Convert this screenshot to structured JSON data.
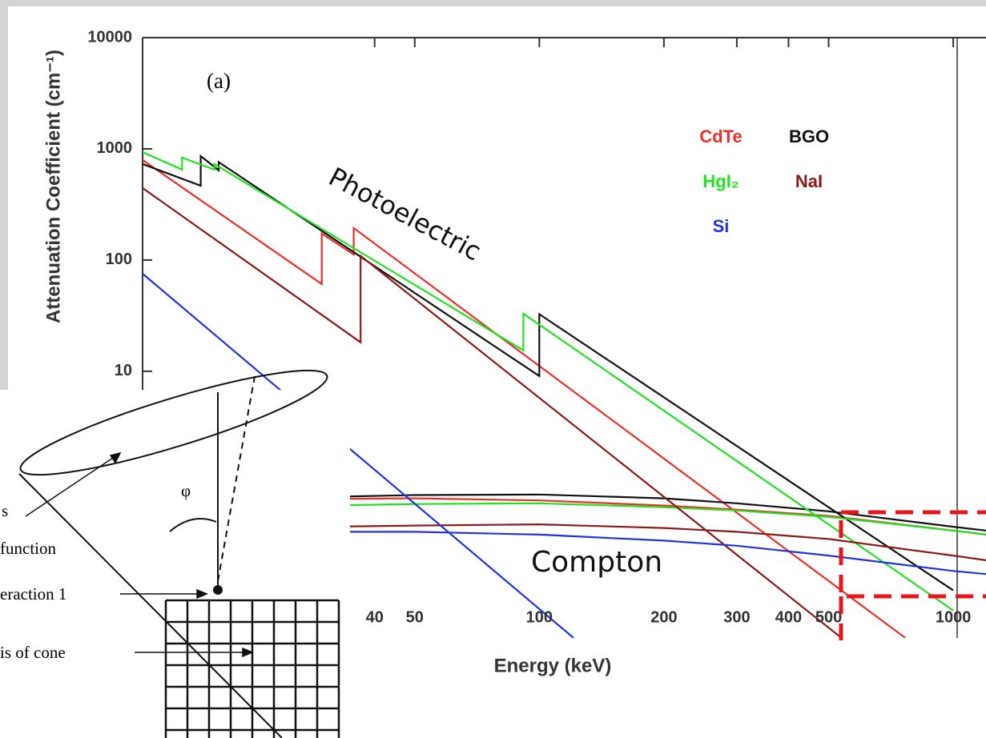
{
  "chart_data": {
    "type": "line",
    "xlabel": "Energy (keV)",
    "ylabel": "Attenuation Coefficient (cm⁻¹)",
    "x_scale": "log",
    "y_scale": "log",
    "xlim": [
      11,
      1200
    ],
    "ylim": [
      0.04,
      10000
    ],
    "xticks": [
      40,
      50,
      100,
      200,
      300,
      400,
      500,
      1000
    ],
    "yticks": [
      10,
      100,
      1000,
      10000
    ],
    "legend": "upper right",
    "annotations": [
      "(a)",
      "Photoelectric",
      "Compton"
    ],
    "compton_x": [
      11,
      20,
      30,
      50,
      100,
      200,
      300,
      500,
      1000,
      1200
    ],
    "series": [
      {
        "name": "CdTe",
        "color": "#e8302a",
        "x": [
          11,
          29.8,
          29.8,
          35.6,
          35.6,
          766
        ],
        "values": [
          793,
          60.8,
          173,
          112,
          194,
          0.04
        ],
        "compton_values": [
          0.6,
          0.68,
          0.71,
          0.72,
          0.69,
          0.62,
          0.57,
          0.5,
          0.37,
          0.34
        ]
      },
      {
        "name": "BGO",
        "color": "#111111",
        "x": [
          11,
          15.2,
          15.2,
          16.8,
          16.8,
          100,
          100,
          1000
        ],
        "values": [
          730,
          466,
          861,
          640,
          760,
          9.05,
          32.6,
          0.107
        ],
        "compton_values": [
          0.6,
          0.7,
          0.74,
          0.77,
          0.78,
          0.72,
          0.65,
          0.55,
          0.4,
          0.37
        ]
      },
      {
        "name": "HgI₂",
        "color": "#22e022",
        "x": [
          11,
          13.7,
          13.7,
          16.4,
          16.4,
          91.5,
          91.5,
          1000
        ],
        "values": [
          935,
          650,
          834,
          650,
          730,
          15.4,
          33,
          0.0706
        ],
        "compton_values": [
          0.52,
          0.6,
          0.62,
          0.64,
          0.65,
          0.6,
          0.56,
          0.49,
          0.37,
          0.34
        ]
      },
      {
        "name": "NaI",
        "color": "#8b1a1a",
        "x": [
          11,
          37,
          37,
          537
        ],
        "values": [
          444,
          18.2,
          109,
          0.04
        ],
        "compton_values": [
          0.33,
          0.38,
          0.4,
          0.41,
          0.42,
          0.39,
          0.36,
          0.31,
          0.22,
          0.2
        ]
      },
      {
        "name": "Si",
        "color": "#2233dd",
        "x": [
          11,
          121
        ],
        "values": [
          75.4,
          0.04
        ],
        "compton_values": [
          0.3,
          0.34,
          0.36,
          0.36,
          0.34,
          0.3,
          0.27,
          0.22,
          0.16,
          0.15
        ]
      }
    ]
  },
  "diagram": {
    "angle": "φ",
    "labels": [
      "s",
      "function",
      "eraction 1",
      "is of cone"
    ]
  }
}
